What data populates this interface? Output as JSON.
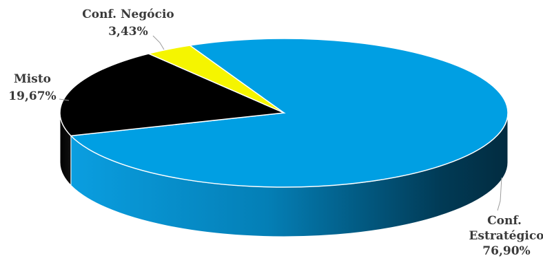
{
  "chart_data": {
    "type": "pie",
    "title": "",
    "legend": "none",
    "slices": [
      {
        "name": "Conf. Estratégico",
        "name_lines": [
          "Conf.",
          "Estratégico"
        ],
        "value": 76.9,
        "label": "76,90%",
        "color": "#009fe3"
      },
      {
        "name": "Misto",
        "name_lines": [
          "Misto"
        ],
        "value": 19.67,
        "label": "19,67%",
        "color": "#000000"
      },
      {
        "name": "Conf. Negócio",
        "name_lines": [
          "Conf. Negócio"
        ],
        "value": 3.43,
        "label": "3,43%",
        "color": "#f5f500"
      }
    ]
  }
}
